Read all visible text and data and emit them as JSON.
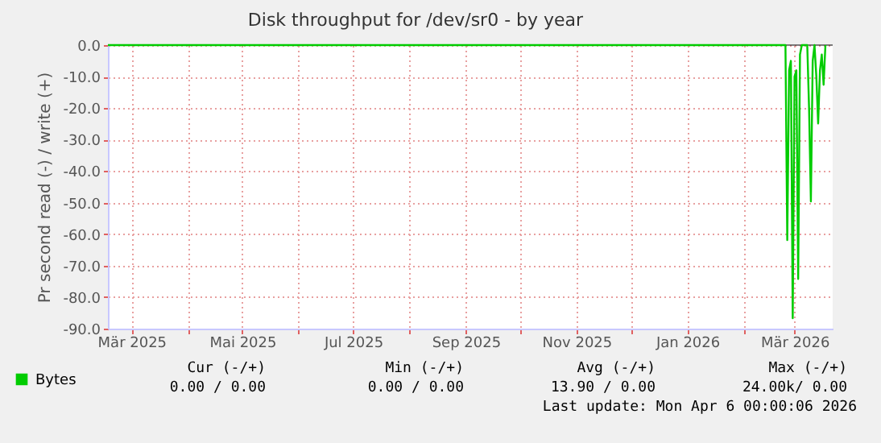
{
  "chart_data": {
    "type": "line",
    "title": "Disk throughput for /dev/sr0 - by year",
    "ylabel": "Pr second read (-) / write (+)",
    "x": [
      "2025-02-16",
      "2026-02-24",
      "2026-02-25",
      "2026-02-26",
      "2026-02-27",
      "2026-02-28",
      "2026-03-01",
      "2026-03-02",
      "2026-03-03",
      "2026-03-04",
      "2026-03-05",
      "2026-03-08",
      "2026-03-09",
      "2026-03-10",
      "2026-03-11",
      "2026-03-12",
      "2026-03-13",
      "2026-03-14",
      "2026-03-15",
      "2026-03-16",
      "2026-03-17",
      "2026-03-18"
    ],
    "series": [
      {
        "name": "Bytes",
        "color": "#00cc00",
        "values": [
          0,
          0,
          -61.9,
          -8,
          -5,
          -86.7,
          -10,
          -8,
          -74.2,
          -3,
          0,
          0,
          -20,
          -49.6,
          -5,
          0,
          -10,
          -24.9,
          -8,
          -3,
          -12.6,
          0
        ]
      }
    ],
    "xlim": [
      "2025-02-16",
      "2026-03-22"
    ],
    "xticks": [
      {
        "value": "2025-03-01",
        "label": "Mär 2025"
      },
      {
        "value": "2025-04-01",
        "label": null
      },
      {
        "value": "2025-05-01",
        "label": "Mai 2025"
      },
      {
        "value": "2025-06-01",
        "label": null
      },
      {
        "value": "2025-07-01",
        "label": "Jul 2025"
      },
      {
        "value": "2025-08-01",
        "label": null
      },
      {
        "value": "2025-09-01",
        "label": "Sep 2025"
      },
      {
        "value": "2025-10-01",
        "label": null
      },
      {
        "value": "2025-11-01",
        "label": "Nov 2025"
      },
      {
        "value": "2025-12-01",
        "label": null
      },
      {
        "value": "2026-01-01",
        "label": "Jan 2026"
      },
      {
        "value": "2026-02-01",
        "label": null
      },
      {
        "value": "2026-03-01",
        "label": "Mär 2026"
      }
    ],
    "ylim": [
      -90,
      0
    ],
    "yticks": [
      {
        "value": 0,
        "label": "0.0"
      },
      {
        "value": -10,
        "label": "-10.0"
      },
      {
        "value": -20,
        "label": "-20.0"
      },
      {
        "value": -30,
        "label": "-30.0"
      },
      {
        "value": -40,
        "label": "-40.0"
      },
      {
        "value": -50,
        "label": "-50.0"
      },
      {
        "value": -60,
        "label": "-60.0"
      },
      {
        "value": -70,
        "label": "-70.0"
      },
      {
        "value": -80,
        "label": "-80.0"
      },
      {
        "value": -90,
        "label": "-90.0"
      }
    ],
    "ref_lines": [
      {
        "axis": "y",
        "value": 0,
        "color": "#000000"
      }
    ],
    "grid": true,
    "legend": "bottom",
    "marker": "none",
    "line_style": "solid",
    "annotations": [
      "Cur (-/+)",
      "Min (-/+)",
      "Avg (-/+)",
      "Max (-/+)",
      "0.00 /    0.00",
      "0.00 /    0.00",
      "13.90 /    0.00",
      "24.00k/    0.00",
      "Last update: Mon Apr  6 00:00:06 2026"
    ]
  }
}
